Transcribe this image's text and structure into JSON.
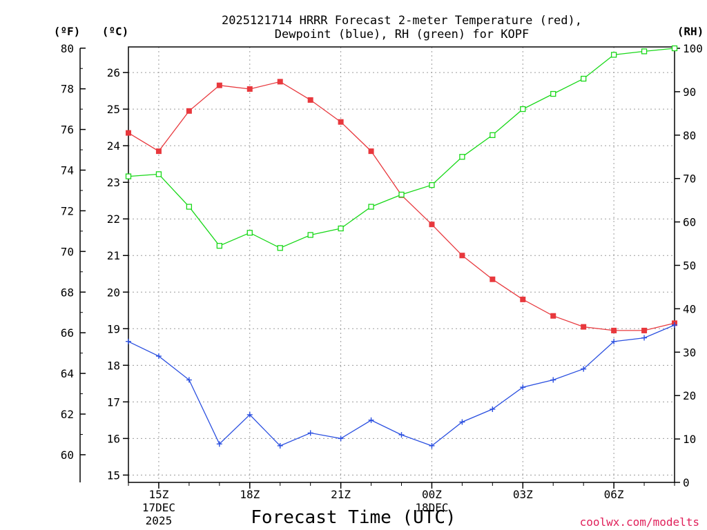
{
  "chart_data": {
    "type": "line",
    "title_line1": "2025121714 HRRR Forecast 2-meter Temperature (red),",
    "title_line2": "Dewpoint (blue), RH (green) for KOPF",
    "units": {
      "fahrenheit": "(ºF)",
      "celsius": "(ºC)",
      "rh": "(RH)"
    },
    "xlabel": "Forecast Time (UTC)",
    "credit": "coolwx.com/modelts",
    "x_hours": [
      14,
      15,
      16,
      17,
      18,
      19,
      20,
      21,
      22,
      23,
      24,
      25,
      26,
      27,
      28,
      29,
      30,
      31,
      32
    ],
    "x_ticks": [
      {
        "hour": 15,
        "label": "15Z",
        "date": "17DEC",
        "year": "2025"
      },
      {
        "hour": 18,
        "label": "18Z",
        "date": "",
        "year": ""
      },
      {
        "hour": 21,
        "label": "21Z",
        "date": "",
        "year": ""
      },
      {
        "hour": 24,
        "label": "00Z",
        "date": "18DEC",
        "year": ""
      },
      {
        "hour": 27,
        "label": "03Z",
        "date": "",
        "year": ""
      },
      {
        "hour": 30,
        "label": "06Z",
        "date": "",
        "year": ""
      }
    ],
    "celsius_axis": {
      "range": [
        14.8,
        26.7
      ],
      "ticks": [
        15,
        16,
        17,
        18,
        19,
        20,
        21,
        22,
        23,
        24,
        25,
        26
      ]
    },
    "fahrenheit_axis": {
      "ticks": [
        60,
        62,
        64,
        66,
        68,
        70,
        72,
        74,
        76,
        78,
        80
      ]
    },
    "rh_axis": {
      "range": [
        0,
        100
      ],
      "ticks": [
        0,
        10,
        20,
        30,
        40,
        50,
        60,
        70,
        80,
        90,
        100
      ]
    },
    "series": [
      {
        "name": "2-meter Temperature",
        "unit": "C",
        "color": "#e8383d",
        "marker": "filled-square",
        "values": [
          24.35,
          23.85,
          24.95,
          25.65,
          25.55,
          25.75,
          25.25,
          24.65,
          23.85,
          22.65,
          21.85,
          21.0,
          20.35,
          19.8,
          19.35,
          19.05,
          18.95,
          18.95,
          19.15
        ]
      },
      {
        "name": "Dewpoint",
        "unit": "C",
        "color": "#2a4fe0",
        "marker": "plus",
        "values": [
          18.65,
          18.25,
          17.6,
          15.85,
          16.65,
          15.8,
          16.15,
          16.0,
          16.5,
          16.1,
          15.8,
          16.45,
          16.8,
          17.4,
          17.6,
          17.9,
          18.65,
          18.75,
          19.1
        ]
      },
      {
        "name": "RH",
        "unit": "%",
        "color": "#18d818",
        "marker": "open-square",
        "values": [
          70.5,
          71.0,
          63.5,
          54.5,
          57.5,
          54.0,
          57.0,
          58.5,
          63.5,
          66.3,
          68.5,
          75.0,
          80.0,
          86.0,
          89.5,
          93.0,
          98.5,
          99.3,
          100.0
        ]
      }
    ]
  }
}
